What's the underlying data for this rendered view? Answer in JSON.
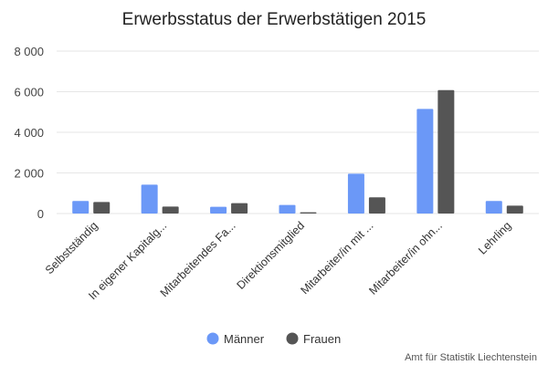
{
  "chart_data": {
    "type": "bar",
    "title": "Erwerbsstatus der Erwerbstätigen 2015",
    "credit": "Amt für Statistik Liechtenstein",
    "categories": [
      "Selbstständig",
      "In eigener Kapitalg...",
      "Mitarbeitendes Fa...",
      "Direktionsmitglied",
      "Mitarbeiter/in mit ...",
      "Mitarbeiter/in ohn...",
      "Lehrling"
    ],
    "series": [
      {
        "name": "Männer",
        "color": "#6b98f7",
        "values": [
          620,
          1420,
          330,
          420,
          1960,
          5150,
          620
        ]
      },
      {
        "name": "Frauen",
        "color": "#555555",
        "values": [
          570,
          340,
          510,
          60,
          800,
          6080,
          390
        ]
      }
    ],
    "ylim": [
      0,
      8000
    ],
    "yticks": [
      0,
      2000,
      4000,
      6000,
      8000
    ],
    "ytick_labels": [
      "0",
      "2 000",
      "4 000",
      "6 000",
      "8 000"
    ],
    "grid": true,
    "legend_position": "bottom-center"
  }
}
